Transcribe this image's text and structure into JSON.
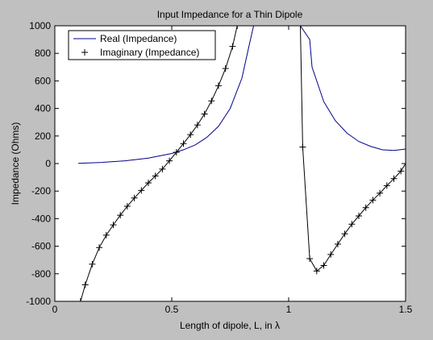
{
  "window": {
    "background": "#c0c0c0",
    "axes_background": "#ffffff"
  },
  "chart_data": {
    "type": "line",
    "title": "Input Impedance for a Thin Dipole",
    "xlabel": "Length of dipole, L, in λ",
    "ylabel": "Impedance (Ohms)",
    "xlim": [
      0,
      1.5
    ],
    "ylim": [
      -1000,
      1000
    ],
    "xticks": [
      0,
      0.5,
      1,
      1.5
    ],
    "xtick_labels": [
      "0",
      "0.5",
      "1",
      "1.5"
    ],
    "yticks": [
      -1000,
      -800,
      -600,
      -400,
      -200,
      0,
      200,
      400,
      600,
      800,
      1000
    ],
    "ytick_labels": [
      "-1000",
      "-800",
      "-600",
      "-400",
      "-200",
      "0",
      "200",
      "400",
      "600",
      "800",
      "1000"
    ],
    "grid": false,
    "legend_position": "top-left",
    "series": [
      {
        "name": "Real (Impedance)",
        "style": "line",
        "color": "#00008b",
        "segments": [
          [
            [
              0.1,
              2
            ],
            [
              0.2,
              8
            ],
            [
              0.3,
              20
            ],
            [
              0.4,
              40
            ],
            [
              0.5,
              73
            ],
            [
              0.55,
              100
            ],
            [
              0.6,
              135
            ],
            [
              0.65,
              190
            ],
            [
              0.7,
              270
            ],
            [
              0.75,
              400
            ],
            [
              0.8,
              620
            ],
            [
              0.83,
              850
            ],
            [
              0.85,
              1000
            ]
          ],
          [
            [
              1.05,
              1000
            ],
            [
              1.09,
              900
            ],
            [
              1.1,
              700
            ],
            [
              1.15,
              450
            ],
            [
              1.2,
              310
            ],
            [
              1.25,
              220
            ],
            [
              1.3,
              160
            ],
            [
              1.35,
              125
            ],
            [
              1.4,
              100
            ],
            [
              1.45,
              95
            ],
            [
              1.5,
              105
            ]
          ]
        ]
      },
      {
        "name": "Imaginary (Impedance)",
        "style": "line-plus",
        "color": "#000000",
        "segments": [
          [
            [
              0.11,
              -1000
            ],
            [
              0.13,
              -880
            ],
            [
              0.16,
              -730
            ],
            [
              0.19,
              -610
            ],
            [
              0.22,
              -520
            ],
            [
              0.25,
              -445
            ],
            [
              0.28,
              -375
            ],
            [
              0.31,
              -310
            ],
            [
              0.34,
              -250
            ],
            [
              0.37,
              -195
            ],
            [
              0.4,
              -140
            ],
            [
              0.43,
              -90
            ],
            [
              0.46,
              -40
            ],
            [
              0.49,
              20
            ],
            [
              0.52,
              82
            ],
            [
              0.55,
              145
            ],
            [
              0.58,
              210
            ],
            [
              0.61,
              280
            ],
            [
              0.64,
              360
            ],
            [
              0.67,
              455
            ],
            [
              0.7,
              565
            ],
            [
              0.73,
              690
            ],
            [
              0.76,
              850
            ],
            [
              0.78,
              1000
            ]
          ],
          [
            [
              1.05,
              1000
            ],
            [
              1.06,
              120
            ],
            [
              1.09,
              -690
            ],
            [
              1.12,
              -780
            ],
            [
              1.15,
              -740
            ],
            [
              1.18,
              -660
            ],
            [
              1.21,
              -585
            ],
            [
              1.24,
              -510
            ],
            [
              1.27,
              -440
            ],
            [
              1.3,
              -380
            ],
            [
              1.33,
              -320
            ],
            [
              1.36,
              -265
            ],
            [
              1.39,
              -215
            ],
            [
              1.42,
              -160
            ],
            [
              1.45,
              -110
            ],
            [
              1.48,
              -55
            ],
            [
              1.5,
              0
            ]
          ]
        ]
      }
    ]
  }
}
